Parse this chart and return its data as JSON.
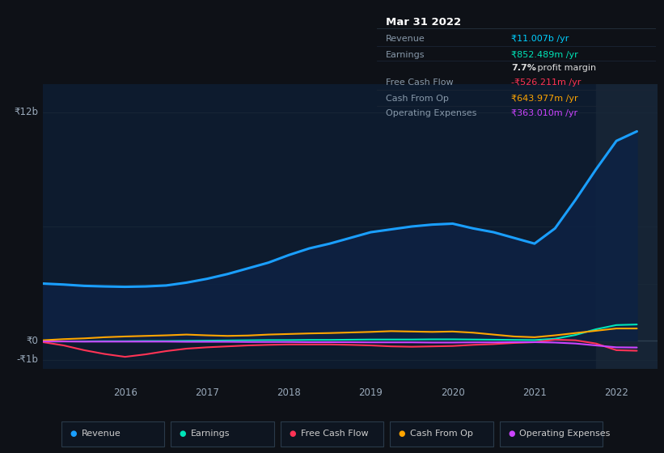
{
  "bg_color": "#0e1117",
  "chart_bg": "#0d1b2e",
  "title_box_bg": "#0a0e18",
  "ylim": [
    -1500000000.0,
    13500000000.0
  ],
  "xlim": [
    2015.0,
    2022.5
  ],
  "ylabel_texts": [
    "₹12b",
    "₹0",
    "-₹1b"
  ],
  "ylabel_yvals": [
    12000000000.0,
    0,
    -1000000000.0
  ],
  "xlabel_texts": [
    "2016",
    "2017",
    "2018",
    "2019",
    "2020",
    "2021",
    "2022"
  ],
  "xlabel_xvals": [
    2016,
    2017,
    2018,
    2019,
    2020,
    2021,
    2022
  ],
  "grid_yvals": [
    12000000000.0,
    6000000000.0,
    3000000000.0,
    0,
    -1000000000.0
  ],
  "highlight_x": 2021.75,
  "title_box": {
    "date": "Mar 31 2022",
    "rows": [
      {
        "label": "Revenue",
        "value": "₹11.007b /yr",
        "value_color": "#00cfff",
        "bold_prefix": ""
      },
      {
        "label": "Earnings",
        "value": "₹852.489m /yr",
        "value_color": "#00e5b8",
        "bold_prefix": ""
      },
      {
        "label": "",
        "value": "7.7% profit margin",
        "value_color": "#dddddd",
        "bold_prefix": "7.7%"
      },
      {
        "label": "Free Cash Flow",
        "value": "-₹526.211m /yr",
        "value_color": "#ff3355",
        "bold_prefix": ""
      },
      {
        "label": "Cash From Op",
        "value": "₹643.977m /yr",
        "value_color": "#ffa500",
        "bold_prefix": ""
      },
      {
        "label": "Operating Expenses",
        "value": "₹363.010m /yr",
        "value_color": "#cc44ff",
        "bold_prefix": ""
      }
    ]
  },
  "series": {
    "Revenue": {
      "color": "#1a9fff",
      "fill_color": "#0a2550",
      "linewidth": 2.2,
      "x": [
        2015.0,
        2015.25,
        2015.5,
        2015.75,
        2016.0,
        2016.25,
        2016.5,
        2016.75,
        2017.0,
        2017.25,
        2017.5,
        2017.75,
        2018.0,
        2018.25,
        2018.5,
        2018.75,
        2019.0,
        2019.25,
        2019.5,
        2019.75,
        2020.0,
        2020.25,
        2020.5,
        2020.75,
        2021.0,
        2021.25,
        2021.5,
        2021.75,
        2022.0,
        2022.25
      ],
      "y": [
        3000000000.0,
        2950000000.0,
        2880000000.0,
        2850000000.0,
        2830000000.0,
        2850000000.0,
        2900000000.0,
        3050000000.0,
        3250000000.0,
        3500000000.0,
        3800000000.0,
        4100000000.0,
        4500000000.0,
        4850000000.0,
        5100000000.0,
        5400000000.0,
        5700000000.0,
        5850000000.0,
        6000000000.0,
        6100000000.0,
        6150000000.0,
        5900000000.0,
        5700000000.0,
        5400000000.0,
        5100000000.0,
        5900000000.0,
        7400000000.0,
        9000000000.0,
        10500000000.0,
        11000000000.0
      ]
    },
    "Earnings": {
      "color": "#00e5b8",
      "linewidth": 1.5,
      "x": [
        2015.0,
        2015.25,
        2015.5,
        2015.75,
        2016.0,
        2016.25,
        2016.5,
        2016.75,
        2017.0,
        2017.25,
        2017.5,
        2017.75,
        2018.0,
        2018.25,
        2018.5,
        2018.75,
        2019.0,
        2019.25,
        2019.5,
        2019.75,
        2020.0,
        2020.25,
        2020.5,
        2020.75,
        2021.0,
        2021.25,
        2021.5,
        2021.75,
        2022.0,
        2022.25
      ],
      "y": [
        -50000000.0,
        -40000000.0,
        -40000000.0,
        -30000000.0,
        -30000000.0,
        -20000000.0,
        -20000000.0,
        -10000000.0,
        0.0,
        10000000.0,
        20000000.0,
        30000000.0,
        30000000.0,
        40000000.0,
        40000000.0,
        50000000.0,
        60000000.0,
        60000000.0,
        60000000.0,
        70000000.0,
        70000000.0,
        60000000.0,
        50000000.0,
        40000000.0,
        30000000.0,
        100000000.0,
        300000000.0,
        600000000.0,
        820000000.0,
        850000000.0
      ]
    },
    "FreeCashFlow": {
      "color": "#ff3355",
      "linewidth": 1.5,
      "x": [
        2015.0,
        2015.25,
        2015.5,
        2015.75,
        2016.0,
        2016.25,
        2016.5,
        2016.75,
        2017.0,
        2017.25,
        2017.5,
        2017.75,
        2018.0,
        2018.25,
        2018.5,
        2018.75,
        2019.0,
        2019.25,
        2019.5,
        2019.75,
        2020.0,
        2020.25,
        2020.5,
        2020.75,
        2021.0,
        2021.25,
        2021.5,
        2021.75,
        2022.0,
        2022.25
      ],
      "y": [
        -80000000.0,
        -250000000.0,
        -500000000.0,
        -700000000.0,
        -850000000.0,
        -720000000.0,
        -550000000.0,
        -420000000.0,
        -350000000.0,
        -300000000.0,
        -250000000.0,
        -220000000.0,
        -200000000.0,
        -200000000.0,
        -200000000.0,
        -220000000.0,
        -250000000.0,
        -300000000.0,
        -320000000.0,
        -300000000.0,
        -280000000.0,
        -220000000.0,
        -180000000.0,
        -120000000.0,
        -80000000.0,
        50000000.0,
        20000000.0,
        -150000000.0,
        -500000000.0,
        -530000000.0
      ]
    },
    "CashFromOp": {
      "color": "#ffa500",
      "linewidth": 1.5,
      "x": [
        2015.0,
        2015.25,
        2015.5,
        2015.75,
        2016.0,
        2016.25,
        2016.5,
        2016.75,
        2017.0,
        2017.25,
        2017.5,
        2017.75,
        2018.0,
        2018.25,
        2018.5,
        2018.75,
        2019.0,
        2019.25,
        2019.5,
        2019.75,
        2020.0,
        2020.25,
        2020.5,
        2020.75,
        2021.0,
        2021.25,
        2021.5,
        2021.75,
        2022.0,
        2022.25
      ],
      "y": [
        20000000.0,
        80000000.0,
        120000000.0,
        180000000.0,
        220000000.0,
        250000000.0,
        280000000.0,
        320000000.0,
        280000000.0,
        250000000.0,
        270000000.0,
        320000000.0,
        350000000.0,
        380000000.0,
        400000000.0,
        430000000.0,
        460000000.0,
        500000000.0,
        480000000.0,
        460000000.0,
        480000000.0,
        420000000.0,
        320000000.0,
        220000000.0,
        180000000.0,
        280000000.0,
        400000000.0,
        520000000.0,
        640000000.0,
        640000000.0
      ]
    },
    "OperatingExpenses": {
      "color": "#cc44ff",
      "linewidth": 1.5,
      "x": [
        2015.0,
        2015.25,
        2015.5,
        2015.75,
        2016.0,
        2016.25,
        2016.5,
        2016.75,
        2017.0,
        2017.25,
        2017.5,
        2017.75,
        2018.0,
        2018.25,
        2018.5,
        2018.75,
        2019.0,
        2019.25,
        2019.5,
        2019.75,
        2020.0,
        2020.25,
        2020.5,
        2020.75,
        2021.0,
        2021.25,
        2021.5,
        2021.75,
        2022.0,
        2022.25
      ],
      "y": [
        -40000000.0,
        -40000000.0,
        -50000000.0,
        -50000000.0,
        -50000000.0,
        -50000000.0,
        -50000000.0,
        -60000000.0,
        -60000000.0,
        -60000000.0,
        -70000000.0,
        -70000000.0,
        -70000000.0,
        -80000000.0,
        -80000000.0,
        -80000000.0,
        -90000000.0,
        -90000000.0,
        -90000000.0,
        -100000000.0,
        -100000000.0,
        -90000000.0,
        -90000000.0,
        -80000000.0,
        -80000000.0,
        -100000000.0,
        -150000000.0,
        -250000000.0,
        -350000000.0,
        -360000000.0
      ]
    }
  },
  "legend": [
    {
      "label": "Revenue",
      "color": "#1a9fff"
    },
    {
      "label": "Earnings",
      "color": "#00e5b8"
    },
    {
      "label": "Free Cash Flow",
      "color": "#ff3355"
    },
    {
      "label": "Cash From Op",
      "color": "#ffa500"
    },
    {
      "label": "Operating Expenses",
      "color": "#cc44ff"
    }
  ]
}
